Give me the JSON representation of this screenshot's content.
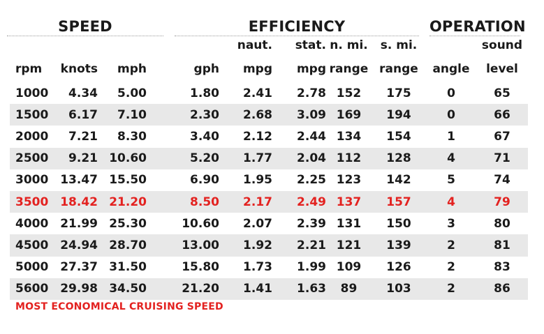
{
  "groups": {
    "speed": "SPEED",
    "efficiency": "EFFICIENCY",
    "operation": "OPERATION"
  },
  "columns": [
    {
      "top": "",
      "bottom": "rpm"
    },
    {
      "top": "",
      "bottom": "knots"
    },
    {
      "top": "",
      "bottom": "mph"
    },
    {
      "top": "",
      "bottom": "gph"
    },
    {
      "top": "naut.",
      "bottom": "mpg"
    },
    {
      "top": "stat.",
      "bottom": "mpg"
    },
    {
      "top": "n. mi.",
      "bottom": "range"
    },
    {
      "top": "s. mi.",
      "bottom": "range"
    },
    {
      "top": "",
      "bottom": "angle"
    },
    {
      "top": "sound",
      "bottom": "level"
    }
  ],
  "rows": [
    [
      "1000",
      "4.34",
      "5.00",
      "1.80",
      "2.41",
      "2.78",
      "152",
      "175",
      "0",
      "65"
    ],
    [
      "1500",
      "6.17",
      "7.10",
      "2.30",
      "2.68",
      "3.09",
      "169",
      "194",
      "0",
      "66"
    ],
    [
      "2000",
      "7.21",
      "8.30",
      "3.40",
      "2.12",
      "2.44",
      "134",
      "154",
      "1",
      "67"
    ],
    [
      "2500",
      "9.21",
      "10.60",
      "5.20",
      "1.77",
      "2.04",
      "112",
      "128",
      "4",
      "71"
    ],
    [
      "3000",
      "13.47",
      "15.50",
      "6.90",
      "1.95",
      "2.25",
      "123",
      "142",
      "5",
      "74"
    ],
    [
      "3500",
      "18.42",
      "21.20",
      "8.50",
      "2.17",
      "2.49",
      "137",
      "157",
      "4",
      "79"
    ],
    [
      "4000",
      "21.99",
      "25.30",
      "10.60",
      "2.07",
      "2.39",
      "131",
      "150",
      "3",
      "80"
    ],
    [
      "4500",
      "24.94",
      "28.70",
      "13.00",
      "1.92",
      "2.21",
      "121",
      "139",
      "2",
      "81"
    ],
    [
      "5000",
      "27.37",
      "31.50",
      "15.80",
      "1.73",
      "1.99",
      "109",
      "126",
      "2",
      "83"
    ],
    [
      "5600",
      "29.98",
      "34.50",
      "21.20",
      "1.41",
      "1.63",
      "89",
      "103",
      "2",
      "86"
    ]
  ],
  "highlight_row": 5,
  "highlight_color": "#e32220",
  "stripe_color": "#e8e8e8",
  "note": "MOST ECONOMICAL CRUISING SPEED"
}
